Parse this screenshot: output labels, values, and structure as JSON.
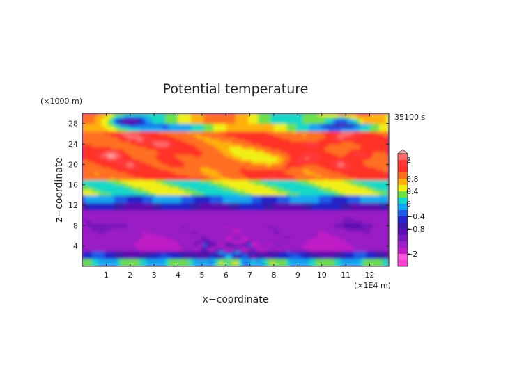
{
  "chart_data": {
    "type": "heatmap",
    "title": "Potential temperature",
    "time_label": "35100 s",
    "xlabel": "x−coordinate",
    "ylabel": "z−coordinate",
    "x_unit": "(×1E4 m)",
    "y_unit": "(×1000 m)",
    "xlim": [
      0,
      12.8
    ],
    "ylim": [
      0,
      30
    ],
    "x_ticks": [
      1,
      2,
      3,
      4,
      5,
      6,
      7,
      8,
      9,
      10,
      11,
      12
    ],
    "x_tick_labels": [
      "1",
      "2",
      "3",
      "4",
      "5",
      "6",
      "7",
      "8",
      "9",
      "10",
      "11",
      "12"
    ],
    "y_ticks": [
      4,
      8,
      12,
      16,
      20,
      24,
      28
    ],
    "y_tick_labels": [
      "4",
      "8",
      "12",
      "16",
      "20",
      "24",
      "28"
    ],
    "colorbar": {
      "levels": [
        -3,
        -2.5,
        -2,
        -1.5,
        -1.2,
        -1,
        -0.8,
        -0.6,
        -0.4,
        -0.2,
        0,
        0.2,
        0.4,
        0.6,
        0.8,
        1.2,
        1.6,
        2,
        2.4,
        3
      ],
      "colors": [
        "#ff3fd2",
        "#ff58e0",
        "#c01fc6",
        "#9a1fc4",
        "#7818bc",
        "#5c10b0",
        "#3a1aa8",
        "#2424c8",
        "#1e5ae6",
        "#12a6f0",
        "#15d8c6",
        "#6ee04e",
        "#f0f018",
        "#ffb010",
        "#ff7020",
        "#ff3028",
        "#ff3838",
        "#ff6a6a",
        "#ffb0b0"
      ],
      "tick_values": [
        2,
        0.8,
        0.4,
        0,
        -0.4,
        -0.8,
        -2
      ],
      "tick_labels": [
        "2",
        "0.8",
        "0.4",
        "0",
        "−0.4",
        "−0.8",
        "−2"
      ],
      "extend": "max"
    },
    "grid": false
  }
}
